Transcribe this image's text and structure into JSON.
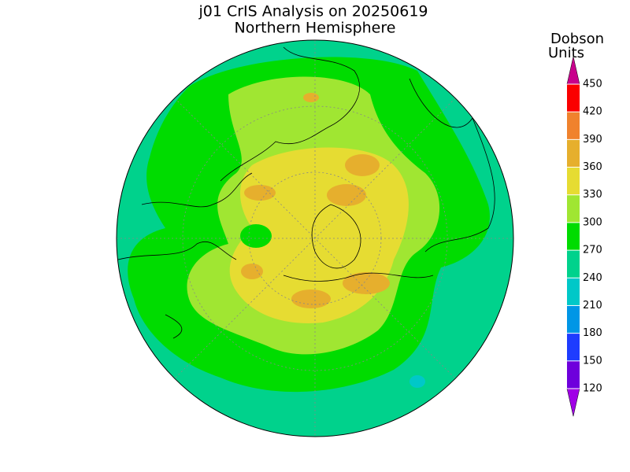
{
  "header": {
    "title": "j01 CrIS Analysis on 20250619",
    "subtitle": "Northern Hemisphere"
  },
  "colorbar": {
    "label_lines": [
      "Dobson",
      "Units"
    ],
    "ticks": [
      120,
      150,
      180,
      210,
      240,
      270,
      300,
      330,
      360,
      390,
      420,
      450
    ],
    "colors": [
      "#a000e6",
      "#6e00dc",
      "#1e3cff",
      "#0096e6",
      "#00c8c8",
      "#00d28c",
      "#00dc00",
      "#a0e632",
      "#e6dc32",
      "#e6af2d",
      "#f0822d",
      "#fa0000",
      "#c8008c"
    ]
  }
}
